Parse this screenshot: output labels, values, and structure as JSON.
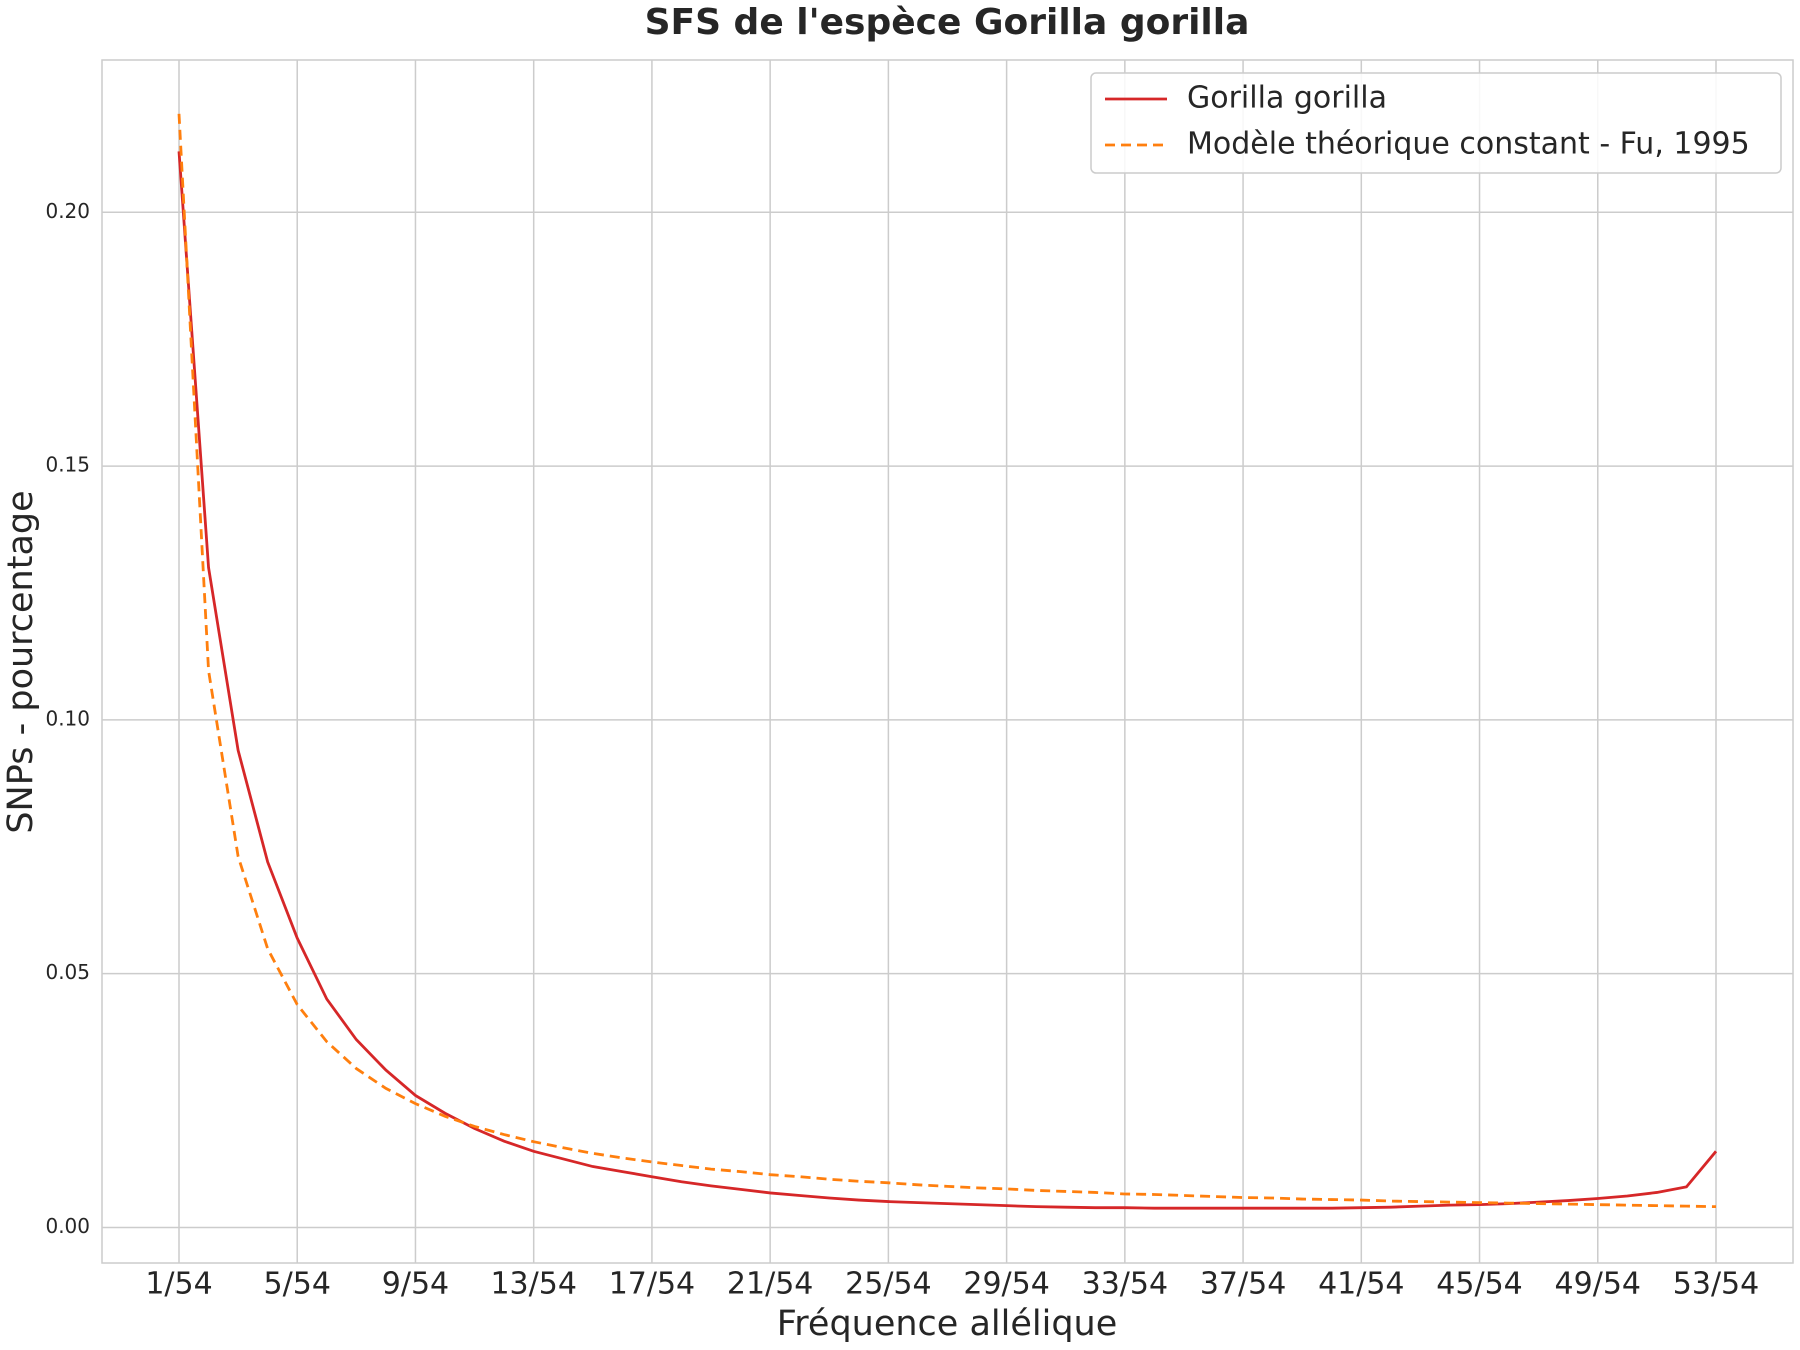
{
  "chart_data": {
    "type": "line",
    "title": "SFS de l'espèce Gorilla gorilla",
    "xlabel": "Fréquence allélique",
    "ylabel": "SNPs - pourcentage",
    "categories": [
      "1/54",
      null,
      null,
      null,
      "5/54",
      null,
      null,
      null,
      "9/54",
      null,
      null,
      null,
      "13/54",
      null,
      null,
      null,
      "17/54",
      null,
      null,
      null,
      "21/54",
      null,
      null,
      null,
      "25/54",
      null,
      null,
      null,
      "29/54",
      null,
      null,
      null,
      "33/54",
      null,
      null,
      null,
      "37/54",
      null,
      null,
      null,
      "41/54",
      null,
      null,
      null,
      "45/54",
      null,
      null,
      null,
      "49/54",
      null,
      null,
      null,
      "53/54"
    ],
    "series": [
      {
        "name": "Gorilla gorilla",
        "color": "#d62728",
        "dash": "solid",
        "values": [
          0.212,
          0.13,
          0.094,
          0.072,
          0.057,
          0.045,
          0.037,
          0.031,
          0.026,
          0.0225,
          0.0195,
          0.017,
          0.015,
          0.0135,
          0.012,
          0.011,
          0.01,
          0.009,
          0.0082,
          0.0075,
          0.0068,
          0.0063,
          0.0058,
          0.0054,
          0.0051,
          0.0049,
          0.0047,
          0.0045,
          0.0043,
          0.0041,
          0.004,
          0.0039,
          0.0039,
          0.0038,
          0.0038,
          0.0038,
          0.0038,
          0.0038,
          0.0038,
          0.0038,
          0.0039,
          0.004,
          0.0042,
          0.0044,
          0.0045,
          0.0047,
          0.005,
          0.0053,
          0.0057,
          0.0062,
          0.0069,
          0.008,
          0.015
        ]
      },
      {
        "name": "Modèle théorique constant - Fu, 1995",
        "color": "#ff7f0e",
        "dash": "dashed",
        "values": [
          0.2194,
          0.1097,
          0.0731,
          0.0549,
          0.0439,
          0.0366,
          0.0313,
          0.0274,
          0.0244,
          0.0219,
          0.0199,
          0.0183,
          0.0169,
          0.0157,
          0.0146,
          0.0137,
          0.0129,
          0.0122,
          0.0115,
          0.011,
          0.0104,
          0.01,
          0.0095,
          0.0091,
          0.0088,
          0.0084,
          0.0081,
          0.0078,
          0.0076,
          0.0073,
          0.0071,
          0.0069,
          0.0066,
          0.0065,
          0.0063,
          0.0061,
          0.0059,
          0.0058,
          0.0056,
          0.0055,
          0.0054,
          0.0052,
          0.0051,
          0.005,
          0.0049,
          0.0048,
          0.0047,
          0.0046,
          0.0045,
          0.0044,
          0.0043,
          0.0042,
          0.0041
        ]
      }
    ],
    "ylim": [
      -0.007,
      0.23
    ],
    "yticks": [
      {
        "value": 0,
        "label": "0.00"
      },
      {
        "value": 0.05,
        "label": "0.05"
      },
      {
        "value": 0.1,
        "label": "0.10"
      },
      {
        "value": 0.15,
        "label": "0.15"
      },
      {
        "value": 0.2,
        "label": "0.20"
      }
    ],
    "grid": true,
    "legend": "upper right"
  }
}
